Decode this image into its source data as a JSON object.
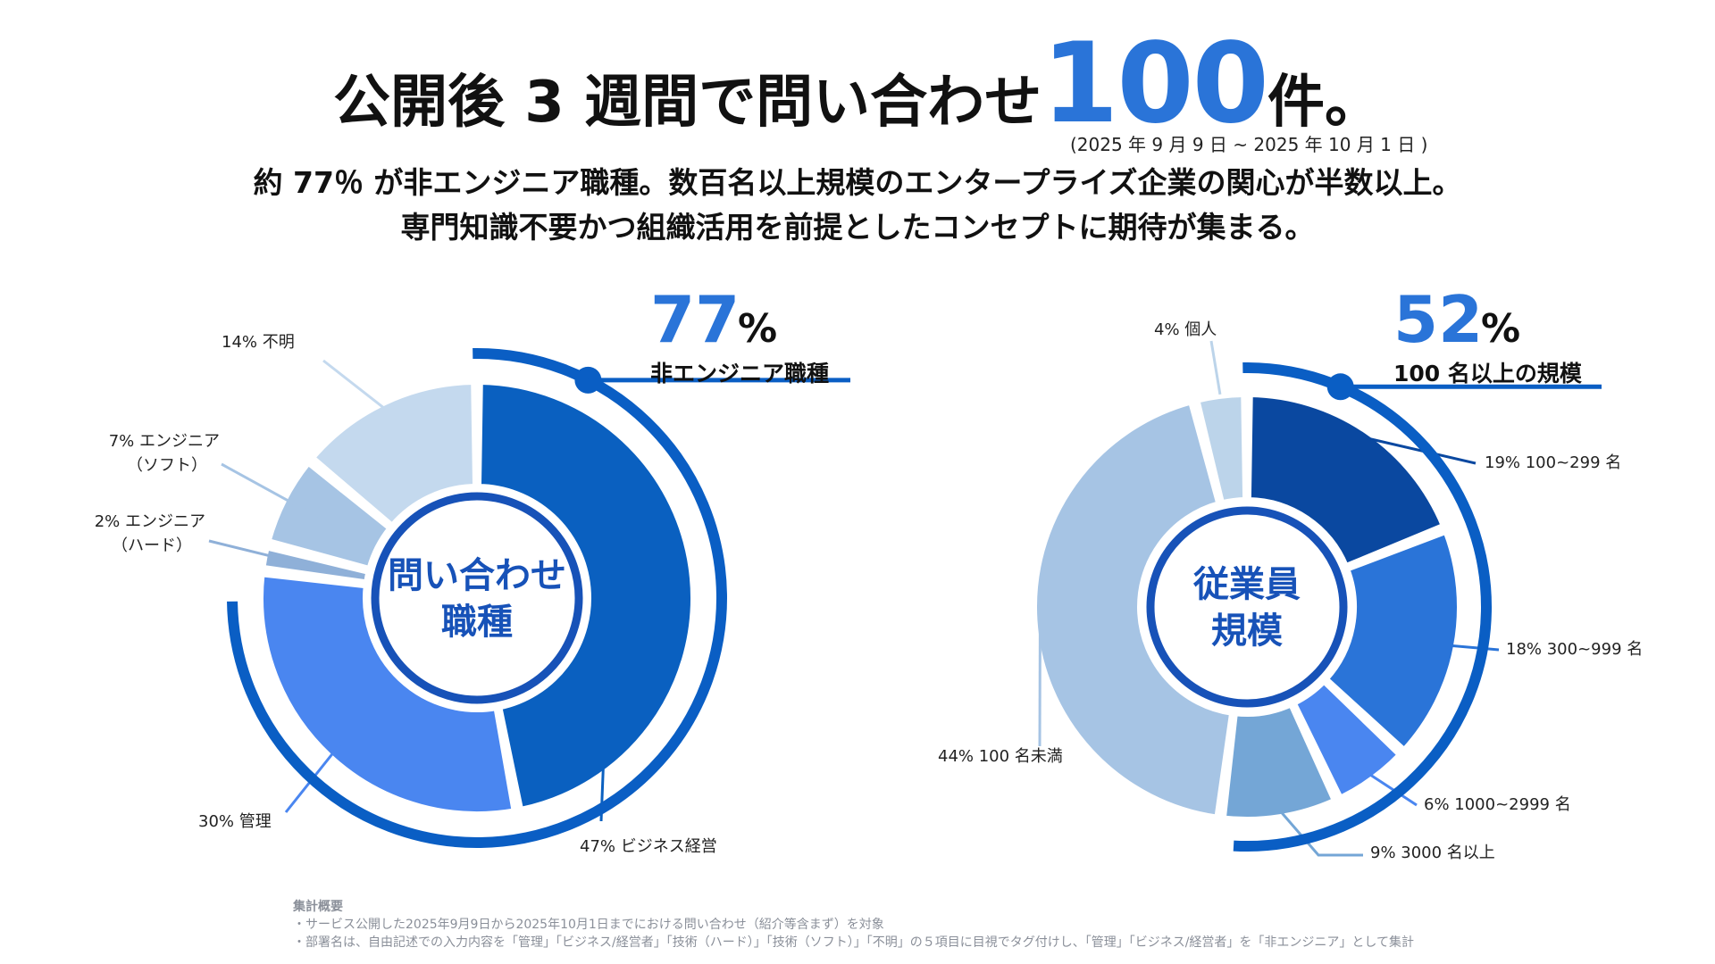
{
  "colors": {
    "accent": "#2a74d8",
    "ring": "#0a5ec4",
    "center_text": "#1752b8",
    "palette_dark": "#0a48a0",
    "palette_mid": "#2a74d8",
    "palette_bright": "#4a86f0"
  },
  "header": {
    "title_before": "公開後 3 週間で問い合わせ",
    "title_number": "100",
    "title_after": "件。",
    "period": "(2025 年 9 月 9 日 ~ 2025 年 10 月 1 日 )",
    "lead_line1": "約 77％ が非エンジニア職種。数百名以上規模のエンタープライズ企業の関心が半数以上。",
    "lead_line2": "専門知識不要かつ組織活用を前提としたコンセプトに期待が集まる。"
  },
  "chart_data": [
    {
      "type": "pie",
      "title": "問い合わせ職種",
      "center_line1": "問い合わせ",
      "center_line2": "職種",
      "highlight_value": "77",
      "highlight_unit": "%",
      "highlight_caption": "非エンジニア職種",
      "highlight_share": 0.77,
      "slices": [
        {
          "label": "47% ビジネス経営",
          "value": 47,
          "color": "#0a60c0"
        },
        {
          "label": "30% 管理",
          "value": 30,
          "color": "#4a86f0"
        },
        {
          "label": "2% エンジニア（ハード）",
          "line1": "2% エンジニア",
          "line2": "（ハード）",
          "value": 2,
          "color": "#8fb0d8"
        },
        {
          "label": "7% エンジニア（ソフト）",
          "line1": "7% エンジニア",
          "line2": "（ソフト）",
          "value": 7,
          "color": "#a6c4e4"
        },
        {
          "label": "14% 不明",
          "value": 14,
          "color": "#c4d9ee"
        }
      ]
    },
    {
      "type": "pie",
      "title": "従業員規模",
      "center_line1": "従業員",
      "center_line2": "規模",
      "highlight_value": "52",
      "highlight_unit": "%",
      "highlight_caption": "100 名以上の規模",
      "highlight_share": 0.52,
      "slices": [
        {
          "label": "19% 100~299 名",
          "value": 19,
          "color": "#0a48a0"
        },
        {
          "label": "18% 300~999 名",
          "value": 18,
          "color": "#2a74d8"
        },
        {
          "label": "6% 1000~2999 名",
          "value": 6,
          "color": "#4a86f0"
        },
        {
          "label": "9% 3000 名以上",
          "value": 9,
          "color": "#74a6d6"
        },
        {
          "label": "44% 100 名未満",
          "value": 44,
          "color": "#a6c4e4"
        },
        {
          "label": "4% 個人",
          "value": 4,
          "color": "#bcd4ea"
        }
      ]
    }
  ],
  "notes": {
    "heading": "集計概要",
    "line1": "・サービス公開した2025年9月9日から2025年10月1日までにおける問い合わせ（紹介等含まず）を対象",
    "line2": "・部署名は、自由記述での入力内容を「管理」「ビジネス/経営者」「技術（ハード）」「技術（ソフト）」「不明」の５項目に目視でタグ付けし、「管理」「ビジネス/経営者」を「非エンジニア」として集計"
  }
}
